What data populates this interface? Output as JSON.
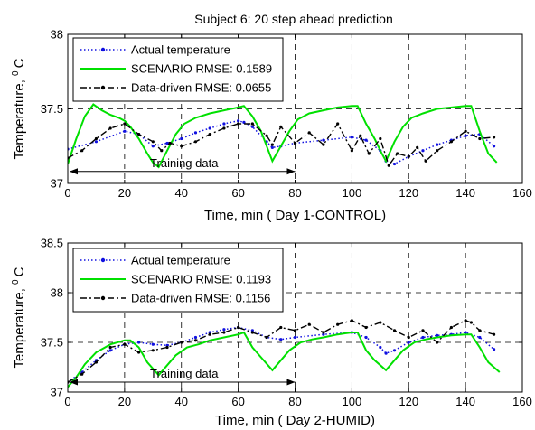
{
  "figure_title": "Subject 6: 20 step ahead prediction",
  "colors": {
    "actual": "#1010e0",
    "scenario": "#00e000",
    "datadriven": "#000000"
  },
  "chart_data": [
    {
      "type": "line",
      "title": "Subject 6: 20 step ahead prediction",
      "xlabel": "Time, min ( Day 1-CONTROL)",
      "ylabel_main": "Temperature,",
      "ylabel_sup": "0",
      "ylabel_unit": "C",
      "xlim": [
        0,
        160
      ],
      "ylim": [
        37,
        38
      ],
      "xticks": [
        0,
        20,
        40,
        60,
        80,
        100,
        120,
        140,
        160
      ],
      "yticks": [
        37,
        37.5,
        38
      ],
      "ytick_labels": [
        "37",
        "37.5",
        "38"
      ],
      "grid": true,
      "legend_position": "top-left",
      "annotation": {
        "text": "Training data",
        "x_start": 0,
        "x_end": 80,
        "y": 37.08
      },
      "series": [
        {
          "name": "Actual temperature",
          "color": "#1010e0",
          "style": "dotted-marker",
          "x": [
            0,
            10,
            20,
            25,
            30,
            35,
            40,
            45,
            50,
            55,
            60,
            62,
            65,
            70,
            72,
            75,
            80,
            90,
            100,
            105,
            110,
            112,
            115,
            120,
            125,
            130,
            135,
            140,
            145,
            150
          ],
          "y": [
            37.23,
            37.28,
            37.35,
            37.33,
            37.25,
            37.27,
            37.3,
            37.34,
            37.37,
            37.4,
            37.42,
            37.41,
            37.38,
            37.28,
            37.24,
            37.25,
            37.27,
            37.29,
            37.31,
            37.29,
            37.22,
            37.15,
            37.13,
            37.18,
            37.22,
            37.26,
            37.29,
            37.32,
            37.33,
            37.25
          ]
        },
        {
          "name": "SCENARIO RMSE: 0.1589",
          "color": "#00e000",
          "style": "solid",
          "x": [
            0,
            3,
            6,
            9,
            12,
            15,
            18,
            20,
            22,
            25,
            28,
            30,
            32,
            35,
            38,
            41,
            45,
            50,
            55,
            60,
            62,
            65,
            68,
            70,
            72,
            75,
            78,
            81,
            85,
            90,
            95,
            100,
            102,
            105,
            108,
            110,
            112,
            115,
            118,
            121,
            125,
            130,
            135,
            140,
            142,
            145,
            148,
            151
          ],
          "y": [
            37.13,
            37.3,
            37.45,
            37.53,
            37.49,
            37.46,
            37.44,
            37.42,
            37.38,
            37.3,
            37.2,
            37.14,
            37.11,
            37.22,
            37.33,
            37.4,
            37.44,
            37.47,
            37.49,
            37.51,
            37.52,
            37.45,
            37.35,
            37.25,
            37.15,
            37.25,
            37.35,
            37.43,
            37.47,
            37.49,
            37.51,
            37.52,
            37.52,
            37.4,
            37.3,
            37.22,
            37.15,
            37.28,
            37.38,
            37.44,
            37.47,
            37.5,
            37.51,
            37.52,
            37.52,
            37.35,
            37.2,
            37.14
          ]
        },
        {
          "name": "Data-driven RMSE: 0.0655",
          "color": "#000000",
          "style": "dashdot-marker",
          "x": [
            0,
            5,
            10,
            15,
            20,
            25,
            30,
            33,
            36,
            40,
            45,
            50,
            55,
            60,
            65,
            70,
            72,
            75,
            80,
            85,
            90,
            95,
            100,
            103,
            106,
            110,
            113,
            116,
            120,
            123,
            126,
            130,
            135,
            140,
            145,
            150
          ],
          "y": [
            37.17,
            37.22,
            37.3,
            37.37,
            37.4,
            37.33,
            37.28,
            37.22,
            37.27,
            37.25,
            37.28,
            37.33,
            37.37,
            37.4,
            37.4,
            37.32,
            37.26,
            37.38,
            37.27,
            37.34,
            37.26,
            37.4,
            37.22,
            37.32,
            37.2,
            37.3,
            37.12,
            37.2,
            37.18,
            37.24,
            37.15,
            37.22,
            37.28,
            37.35,
            37.3,
            37.31
          ]
        }
      ]
    },
    {
      "type": "line",
      "title": "",
      "xlabel": "Time, min ( Day 2-HUMID)",
      "ylabel_main": "Temperature,",
      "ylabel_sup": "0",
      "ylabel_unit": "C",
      "xlim": [
        0,
        160
      ],
      "ylim": [
        37,
        38.5
      ],
      "xticks": [
        0,
        20,
        40,
        60,
        80,
        100,
        120,
        140,
        160
      ],
      "yticks": [
        37,
        37.5,
        38,
        38.5
      ],
      "ytick_labels": [
        "37",
        "37.5",
        "38",
        "38.5"
      ],
      "grid": true,
      "legend_position": "top-left",
      "annotation": {
        "text": "Training data",
        "x_start": 0,
        "x_end": 80,
        "y": 37.1
      },
      "series": [
        {
          "name": "Actual temperature",
          "color": "#1010e0",
          "style": "dotted-marker",
          "x": [
            0,
            5,
            10,
            15,
            20,
            25,
            30,
            35,
            40,
            45,
            50,
            55,
            60,
            65,
            70,
            75,
            80,
            90,
            100,
            105,
            110,
            112,
            115,
            120,
            125,
            130,
            135,
            140,
            145,
            150
          ],
          "y": [
            37.1,
            37.2,
            37.32,
            37.42,
            37.48,
            37.5,
            37.48,
            37.47,
            37.5,
            37.55,
            37.6,
            37.63,
            37.65,
            37.62,
            37.55,
            37.53,
            37.55,
            37.58,
            37.6,
            37.55,
            37.45,
            37.39,
            37.42,
            37.5,
            37.55,
            37.57,
            37.58,
            37.6,
            37.55,
            37.43
          ]
        },
        {
          "name": "SCENARIO RMSE: 0.1193",
          "color": "#00e000",
          "style": "solid",
          "x": [
            0,
            3,
            6,
            10,
            15,
            20,
            22,
            25,
            28,
            32,
            35,
            38,
            42,
            46,
            50,
            55,
            60,
            62,
            65,
            68,
            72,
            75,
            78,
            82,
            86,
            90,
            95,
            100,
            102,
            105,
            108,
            112,
            115,
            118,
            122,
            126,
            130,
            135,
            140,
            142,
            145,
            148,
            152
          ],
          "y": [
            37.05,
            37.15,
            37.28,
            37.4,
            37.48,
            37.52,
            37.52,
            37.45,
            37.3,
            37.17,
            37.27,
            37.37,
            37.45,
            37.48,
            37.52,
            37.55,
            37.58,
            37.6,
            37.45,
            37.35,
            37.22,
            37.32,
            37.42,
            37.5,
            37.53,
            37.55,
            37.58,
            37.6,
            37.6,
            37.42,
            37.32,
            37.22,
            37.32,
            37.42,
            37.5,
            37.53,
            37.55,
            37.57,
            37.58,
            37.58,
            37.45,
            37.3,
            37.2
          ]
        },
        {
          "name": "Data-driven RMSE: 0.1156",
          "color": "#000000",
          "style": "dashdot-marker",
          "x": [
            0,
            5,
            10,
            15,
            20,
            25,
            30,
            35,
            40,
            45,
            50,
            55,
            60,
            65,
            70,
            75,
            80,
            85,
            90,
            95,
            100,
            105,
            110,
            115,
            120,
            125,
            130,
            135,
            140,
            142,
            145,
            150
          ],
          "y": [
            37.1,
            37.18,
            37.3,
            37.45,
            37.48,
            37.4,
            37.42,
            37.45,
            37.5,
            37.52,
            37.58,
            37.6,
            37.65,
            37.6,
            37.55,
            37.65,
            37.62,
            37.68,
            37.6,
            37.68,
            37.72,
            37.65,
            37.7,
            37.62,
            37.55,
            37.62,
            37.5,
            37.65,
            37.72,
            37.7,
            37.62,
            37.58
          ]
        }
      ]
    }
  ]
}
